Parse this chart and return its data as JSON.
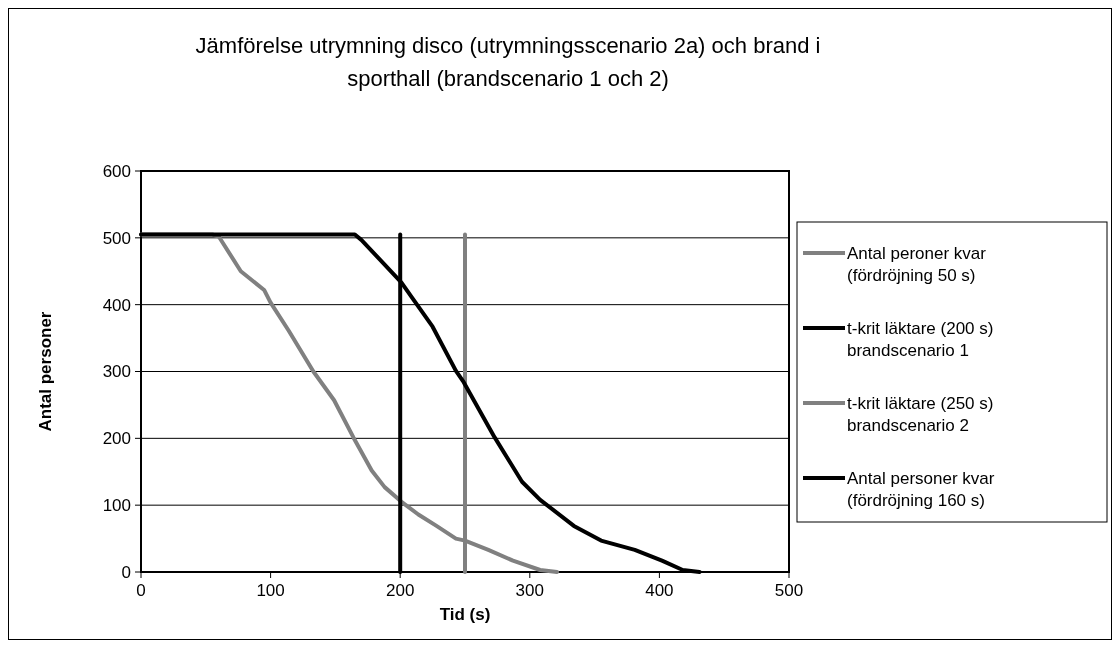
{
  "chart_data": {
    "type": "line",
    "title": "Jämförelse utrymning disco (utrymningsscenario 2a) och brand i\nsporthall (brandscenario 1 och 2)",
    "xlabel": "Tid (s)",
    "ylabel": "Antal personer",
    "xlim": [
      0,
      500
    ],
    "xticks": [
      0,
      100,
      200,
      300,
      400,
      500
    ],
    "ylim": [
      0,
      600
    ],
    "yticks": [
      0,
      100,
      200,
      300,
      400,
      500,
      600
    ],
    "grid": "y",
    "legend": "right",
    "line_style": "solid",
    "series": [
      {
        "name": "Antal peroner kvar\n(fördröjning 50 s)",
        "color": "#808080",
        "x": [
          0,
          55,
          60,
          77,
          95,
          100,
          114,
          133,
          149,
          164,
          178,
          188,
          201,
          214,
          228,
          243,
          250,
          268,
          287,
          308,
          321
        ],
        "values": [
          505,
          505,
          502,
          450,
          422,
          403,
          361,
          300,
          257,
          201,
          152,
          127,
          105,
          86,
          69,
          50,
          47,
          33,
          17,
          3,
          0
        ]
      },
      {
        "name": "t-krit läktare (200 s)\nbrandscenario 1",
        "color": "#000000",
        "x": [
          200,
          200
        ],
        "values": [
          0,
          505
        ]
      },
      {
        "name": "t-krit läktare (250 s)\nbrandscenario 2",
        "color": "#808080",
        "x": [
          250,
          250
        ],
        "values": [
          0,
          505
        ]
      },
      {
        "name": "Antal personer kvar\n(fördröjning 160 s)",
        "color": "#000000",
        "x": [
          0,
          165,
          170,
          186,
          201,
          209,
          225,
          243,
          249,
          273,
          294,
          308,
          334,
          355,
          381,
          402,
          418,
          431
        ],
        "values": [
          505,
          505,
          497,
          464,
          433,
          411,
          367,
          301,
          284,
          201,
          135,
          108,
          69,
          47,
          33,
          17,
          3,
          0
        ]
      }
    ]
  }
}
